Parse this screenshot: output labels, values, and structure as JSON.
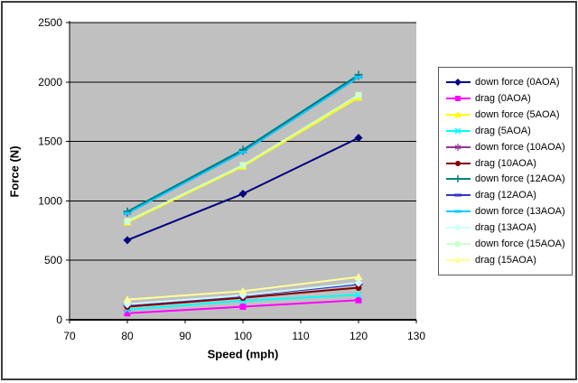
{
  "window": {
    "background": "#FFFFFF",
    "border_color": "#3D3D3D"
  },
  "chart_data": {
    "type": "line",
    "title": "",
    "xlabel": "Speed (mph)",
    "ylabel": "Force (N)",
    "x": [
      80,
      100,
      120
    ],
    "xlim": [
      70,
      130
    ],
    "ylim": [
      0,
      2500
    ],
    "x_ticks": [
      70,
      80,
      90,
      100,
      110,
      120,
      130
    ],
    "y_ticks": [
      0,
      500,
      1000,
      1500,
      2000,
      2500
    ],
    "grid": "horizontal-major",
    "plot_bg": "#C0C0C0",
    "gridline_color": "#000000",
    "axis_color": "#000000",
    "legend_position": "right",
    "series": [
      {
        "name": "down force (0AOA)",
        "color": "#000080",
        "marker": "diamond",
        "values": [
          670,
          1060,
          1530
        ]
      },
      {
        "name": "drag (0AOA)",
        "color": "#FF00FF",
        "marker": "square",
        "values": [
          55,
          110,
          165
        ]
      },
      {
        "name": "down force (5AOA)",
        "color": "#FFFF00",
        "marker": "triangle",
        "values": [
          820,
          1290,
          1870
        ]
      },
      {
        "name": "drag (5AOA)",
        "color": "#00FFFF",
        "marker": "x",
        "values": [
          85,
          160,
          210
        ]
      },
      {
        "name": "down force (10AOA)",
        "color": "#993399",
        "marker": "star",
        "values": [
          900,
          1420,
          2050
        ]
      },
      {
        "name": "drag (10AOA)",
        "color": "#800000",
        "marker": "circle",
        "values": [
          110,
          185,
          270
        ]
      },
      {
        "name": "down force (12AOA)",
        "color": "#008080",
        "marker": "plus",
        "values": [
          910,
          1430,
          2060
        ]
      },
      {
        "name": "drag (12AOA)",
        "color": "#3333CC",
        "marker": "dash",
        "values": [
          125,
          200,
          300
        ]
      },
      {
        "name": "down force (13AOA)",
        "color": "#00CCFF",
        "marker": "dash",
        "values": [
          895,
          1410,
          2040
        ]
      },
      {
        "name": "drag (13AOA)",
        "color": "#CCFFFF",
        "marker": "diamond",
        "values": [
          130,
          205,
          310
        ]
      },
      {
        "name": "down force (15AOA)",
        "color": "#CCFFCC",
        "marker": "square",
        "values": [
          830,
          1300,
          1890
        ]
      },
      {
        "name": "drag (15AOA)",
        "color": "#FFFF99",
        "marker": "triangle",
        "values": [
          170,
          240,
          360
        ]
      }
    ]
  }
}
